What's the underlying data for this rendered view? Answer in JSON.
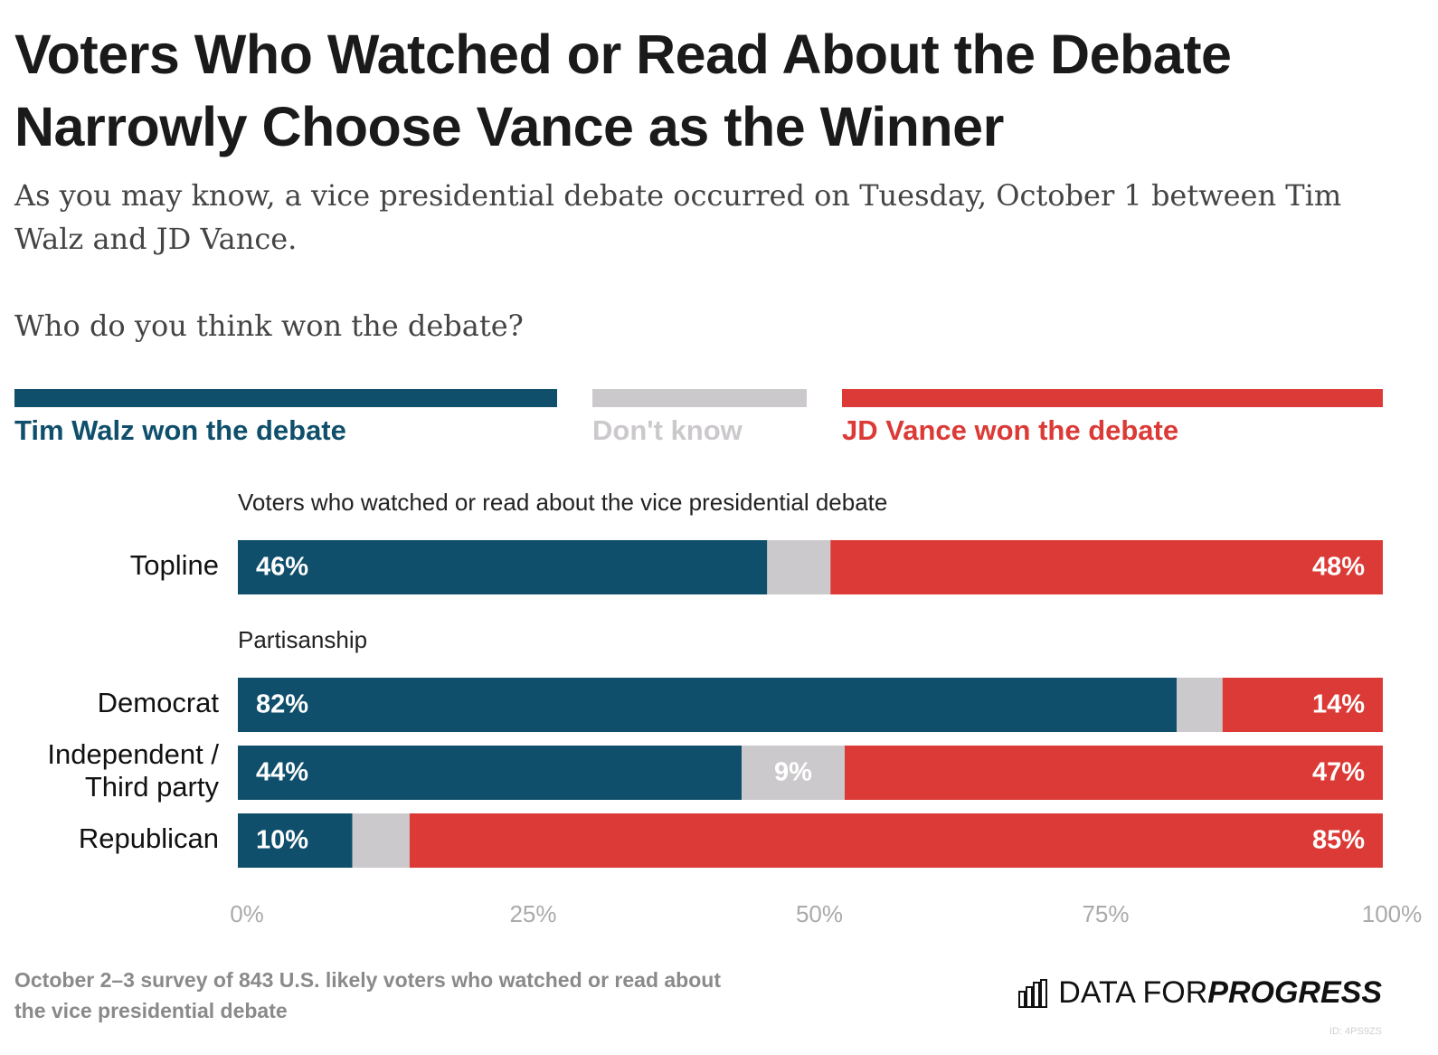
{
  "header": {
    "title": "Voters Who Watched or Read About the Debate Narrowly Choose Vance as the Winner",
    "subtitle": "As you may know, a vice presidential debate occurred on Tuesday, October 1 between Tim Walz and JD Vance.",
    "question": "Who do you think won the debate?"
  },
  "legend": [
    {
      "label": "Tim Walz won the debate",
      "color": "#0f4f6b"
    },
    {
      "label": "Don't know",
      "color": "#ccc9cc"
    },
    {
      "label": "JD Vance won the debate",
      "color": "#db3a36"
    }
  ],
  "chart_data": {
    "type": "bar",
    "orientation": "horizontal",
    "stacked": true,
    "xlim": [
      0,
      100
    ],
    "x_ticks": [
      "0%",
      "25%",
      "50%",
      "75%",
      "100%"
    ],
    "groups": [
      {
        "heading": "Voters who watched or read about the vice presidential debate",
        "rows": [
          {
            "label": "Topline",
            "walz": 46,
            "dont_know": 5.5,
            "vance": 48,
            "labels": [
              "46%",
              "",
              "48%"
            ]
          }
        ]
      },
      {
        "heading": "Partisanship",
        "rows": [
          {
            "label": "Democrat",
            "walz": 82,
            "dont_know": 4,
            "vance": 14,
            "labels": [
              "82%",
              "",
              "14%"
            ]
          },
          {
            "label": "Independent / Third party",
            "walz": 44,
            "dont_know": 9,
            "vance": 47,
            "labels": [
              "44%",
              "9%",
              "47%"
            ]
          },
          {
            "label": "Republican",
            "walz": 10,
            "dont_know": 5,
            "vance": 85,
            "labels": [
              "10%",
              "",
              "85%"
            ]
          }
        ]
      }
    ]
  },
  "footer": {
    "note": "October 2–3 survey of 843 U.S. likely voters who watched or read about the vice presidential debate",
    "brand_regular": "DATA FOR ",
    "brand_bold": "PROGRESS",
    "chart_id": "ID: 4PS9ZS"
  }
}
